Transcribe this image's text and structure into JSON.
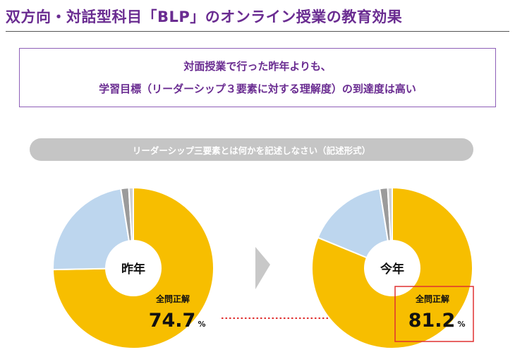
{
  "page_title": "双方向・対話型科目「BLP」のオンライン授業の教育効果",
  "summary": {
    "line1": "対面授業で行った昨年よりも、",
    "line2": "学習目標（リーダーシップ３要素に対する理解度）の到達度は高い"
  },
  "question": "リーダーシップ三要素とは何かを記述しなさい（記述形式）",
  "colors": {
    "correct": "#f7be00",
    "other": "#bdd6ee",
    "minor1": "#9b9b9b",
    "minor2": "#d0d0d0",
    "accent": "#6a2c91",
    "highlight": "#e03030",
    "arrow": "#c8c8c8"
  },
  "chart_data": [
    {
      "type": "pie",
      "center_label": "昨年",
      "caption": "全問正解",
      "value_text": "74.7",
      "unit": "%",
      "slices": [
        {
          "value": 74.7,
          "color": "#f7be00"
        },
        {
          "value": 22.8,
          "color": "#bdd6ee"
        },
        {
          "value": 1.6,
          "color": "#9b9b9b"
        },
        {
          "value": 0.9,
          "color": "#d0d0d0"
        }
      ]
    },
    {
      "type": "pie",
      "center_label": "今年",
      "caption": "全問正解",
      "value_text": "81.2",
      "unit": "%",
      "slices": [
        {
          "value": 81.2,
          "color": "#f7be00"
        },
        {
          "value": 16.3,
          "color": "#bdd6ee"
        },
        {
          "value": 1.6,
          "color": "#9b9b9b"
        },
        {
          "value": 0.9,
          "color": "#d0d0d0"
        }
      ]
    }
  ]
}
